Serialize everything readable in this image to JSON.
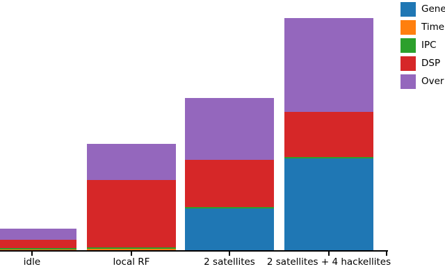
{
  "figure": {
    "background_color": "#ffffff",
    "axis_color": "#000000",
    "text_color": "#000000"
  },
  "legend": {
    "entries": [
      {
        "label": "Gene",
        "color": "#1f77b4"
      },
      {
        "label": "Time",
        "color": "#ff7f0e"
      },
      {
        "label": "IPC",
        "color": "#2ca02c"
      },
      {
        "label": "DSP",
        "color": "#d62728"
      },
      {
        "label": "Over",
        "color": "#9467bd"
      }
    ]
  },
  "chart_data": {
    "type": "bar",
    "stacked": true,
    "title": "",
    "xlabel": "",
    "ylabel": "",
    "grid": false,
    "legend_position": "upper-right, clipped at right image edge",
    "categories": [
      "idle",
      "local RF",
      "2 satellites",
      "2 satellites + 4 hackellites"
    ],
    "series": [
      {
        "name": "Gene",
        "color": "#1f77b4",
        "values": [
          0,
          0,
          61,
          133
        ]
      },
      {
        "name": "Time",
        "color": "#ff7f0e",
        "values": [
          2,
          3,
          0,
          0
        ]
      },
      {
        "name": "IPC",
        "color": "#2ca02c",
        "values": [
          2,
          2,
          2,
          2
        ]
      },
      {
        "name": "DSP",
        "color": "#d62728",
        "values": [
          12,
          97,
          68,
          65
        ]
      },
      {
        "name": "Over",
        "color": "#9467bd",
        "values": [
          16,
          52,
          89,
          135
        ]
      }
    ],
    "totals": [
      32,
      154,
      220,
      335
    ],
    "value_units": "estimated pixel heights (no y-axis scale visible)",
    "ylim": [
      0,
      361
    ]
  }
}
